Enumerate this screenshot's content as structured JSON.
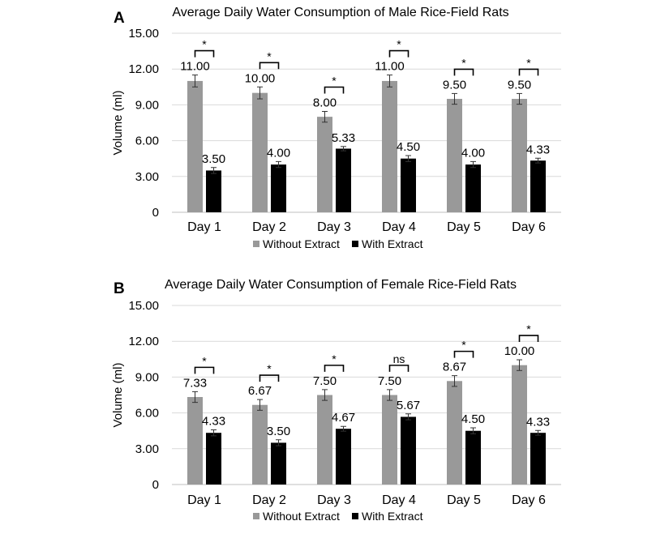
{
  "colors": {
    "without": "#999999",
    "with": "#000000",
    "grid": "#d9d9d9",
    "errorbar": "#333333"
  },
  "chart_data": [
    {
      "type": "bar",
      "panel": "A",
      "title": "Average Daily Water Consumption of Male Rice-Field Rats",
      "ylabel": "Volume (ml)",
      "xlabel": "",
      "ylim": [
        0,
        15
      ],
      "yticks": [
        0,
        3,
        6,
        9,
        12,
        15
      ],
      "ytick_labels": [
        "0",
        "3.00",
        "6.00",
        "9.00",
        "12.00",
        "15.00"
      ],
      "grid": true,
      "legend_position": "bottom",
      "categories": [
        "Day 1",
        "Day 2",
        "Day 3",
        "Day 4",
        "Day 5",
        "Day 6"
      ],
      "series": [
        {
          "name": "Without Extract",
          "values": [
            11.0,
            10.0,
            8.0,
            11.0,
            9.5,
            9.5
          ],
          "labels": [
            "11.00",
            "10.00",
            "8.00",
            "11.00",
            "9.50",
            "9.50"
          ],
          "errors": [
            0.5,
            0.5,
            0.45,
            0.5,
            0.45,
            0.45
          ]
        },
        {
          "name": "With Extract",
          "values": [
            3.5,
            4.0,
            5.33,
            4.5,
            4.0,
            4.33
          ],
          "labels": [
            "3.50",
            "4.00",
            "5.33",
            "4.50",
            "4.00",
            "4.33"
          ],
          "errors": [
            0.25,
            0.25,
            0.18,
            0.25,
            0.25,
            0.2
          ]
        }
      ],
      "significance": [
        "*",
        "*",
        "*",
        "*",
        "*",
        "*"
      ]
    },
    {
      "type": "bar",
      "panel": "B",
      "title": "Average Daily Water Consumption of Female Rice-Field Rats",
      "ylabel": "Volume (ml)",
      "xlabel": "",
      "ylim": [
        0,
        15
      ],
      "yticks": [
        0,
        3,
        6,
        9,
        12,
        15
      ],
      "ytick_labels": [
        "0",
        "3.00",
        "6.00",
        "9.00",
        "12.00",
        "15.00"
      ],
      "grid": true,
      "legend_position": "bottom",
      "categories": [
        "Day 1",
        "Day 2",
        "Day 3",
        "Day 4",
        "Day 5",
        "Day 6"
      ],
      "series": [
        {
          "name": "Without Extract",
          "values": [
            7.33,
            6.67,
            7.5,
            7.5,
            8.67,
            10.0
          ],
          "labels": [
            "7.33",
            "6.67",
            "7.50",
            "7.50",
            "8.67",
            "10.00"
          ],
          "errors": [
            0.45,
            0.45,
            0.45,
            0.45,
            0.45,
            0.45
          ]
        },
        {
          "name": "With Extract",
          "values": [
            4.33,
            3.5,
            4.67,
            5.67,
            4.5,
            4.33
          ],
          "labels": [
            "4.33",
            "3.50",
            "4.67",
            "5.67",
            "4.50",
            "4.33"
          ],
          "errors": [
            0.25,
            0.25,
            0.2,
            0.25,
            0.25,
            0.2
          ]
        }
      ],
      "significance": [
        "*",
        "*",
        "*",
        "ns",
        "*",
        "*"
      ]
    }
  ]
}
